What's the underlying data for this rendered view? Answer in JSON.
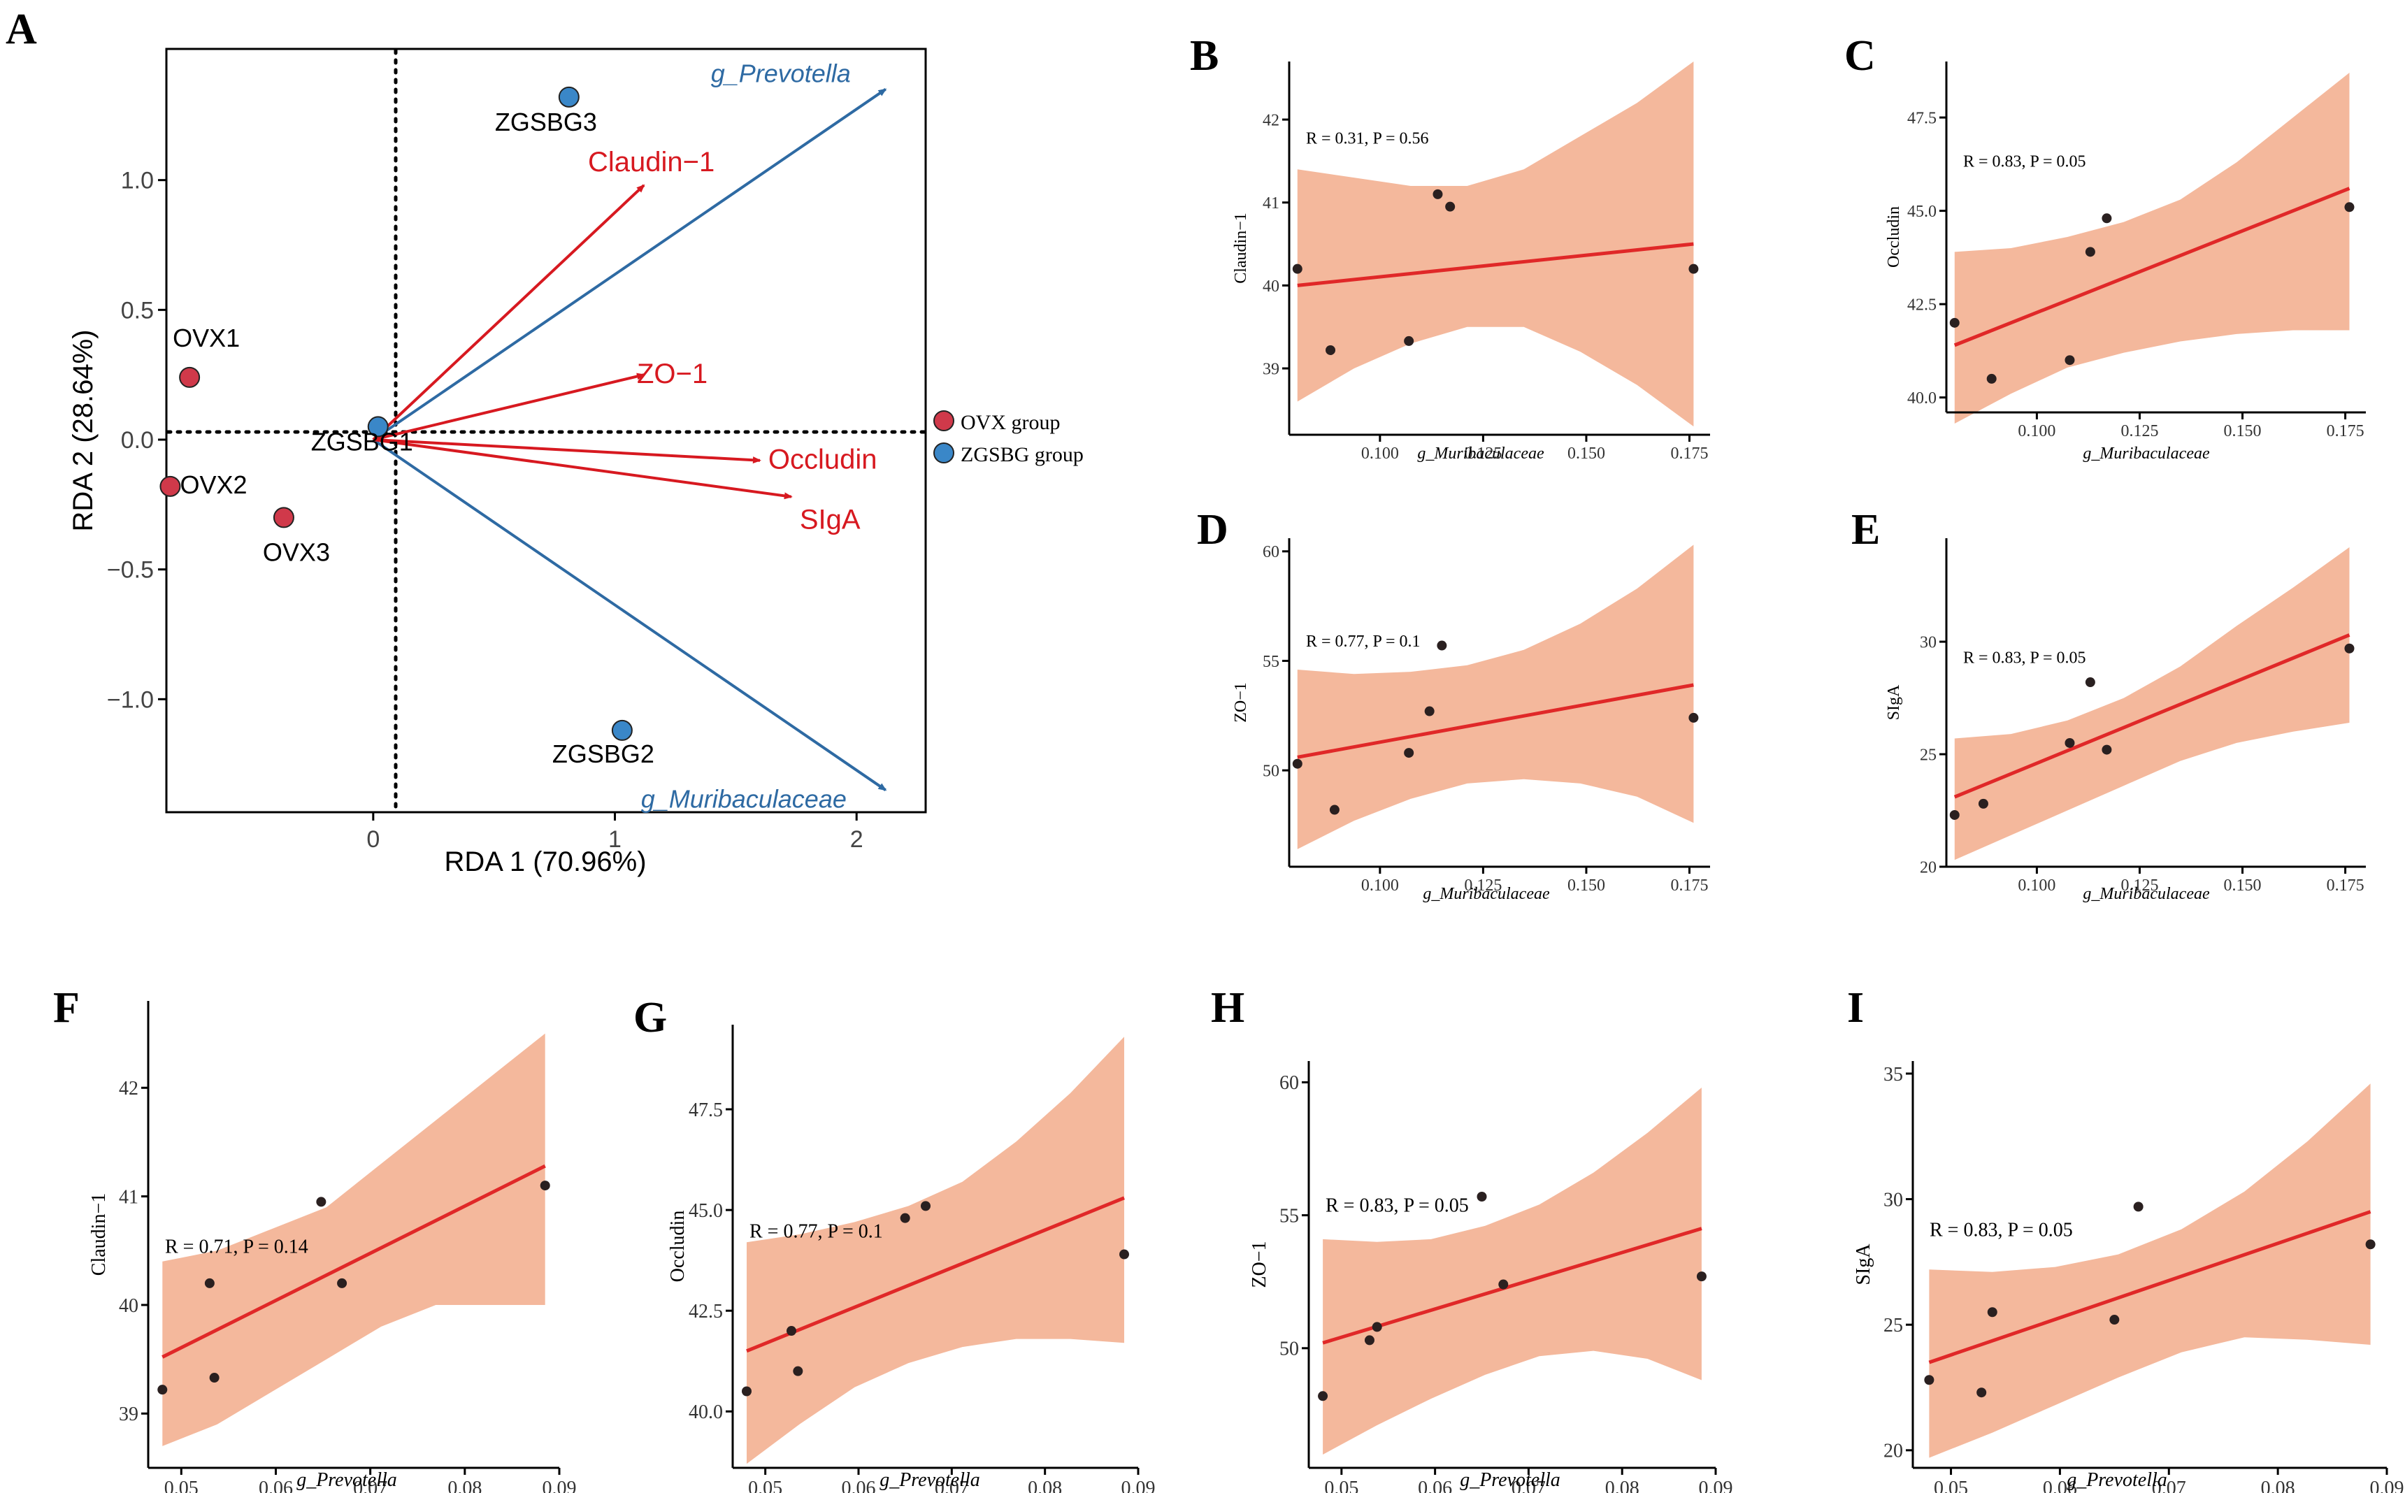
{
  "panels": {
    "A": "A",
    "B": "B",
    "C": "C",
    "D": "D",
    "E": "E",
    "F": "F",
    "G": "G",
    "H": "H",
    "I": "I"
  },
  "colors": {
    "ovx": "#d0394a",
    "zgsbg": "#3a87c8",
    "env_arrow": "#d71920",
    "species_arrow": "#2e6aa3",
    "species_text": "#2e6aa3",
    "band": "#f4b89c",
    "fit": "#e02828",
    "point": "#2a2020"
  },
  "chart_data": [
    {
      "id": "A",
      "type": "scatter",
      "subtype": "RDA biplot",
      "xlabel": "RDA 1 (70.96%)",
      "ylabel": "RDA 2 (28.64%)",
      "xlim": [
        -0.85,
        2.28
      ],
      "ylim": [
        -1.43,
        1.5
      ],
      "xticks": [
        0,
        1,
        2
      ],
      "xtick_labels": [
        "0",
        "1",
        "2"
      ],
      "yticks": [
        1.0,
        0.5,
        0.0,
        -0.5,
        -1.0
      ],
      "ytick_labels": [
        "1.0",
        "0.5",
        "0.0",
        "−0.5",
        "−1.0"
      ],
      "legend": [
        {
          "label": "OVX group",
          "color": "#d0394a"
        },
        {
          "label": "ZGSBG group",
          "color": "#3a87c8"
        }
      ],
      "samples": [
        {
          "label": "OVX1",
          "group": "OVX",
          "x": -0.76,
          "y": 0.24
        },
        {
          "label": "OVX2",
          "group": "OVX",
          "x": -0.84,
          "y": -0.18
        },
        {
          "label": "OVX3",
          "group": "OVX",
          "x": -0.37,
          "y": -0.3
        },
        {
          "label": "ZGSBG1",
          "group": "ZGSBG",
          "x": 0.02,
          "y": 0.05
        },
        {
          "label": "ZGSBG2",
          "group": "ZGSBG",
          "x": 1.03,
          "y": -1.12
        },
        {
          "label": "ZGSBG3",
          "group": "ZGSBG",
          "x": 0.81,
          "y": 1.32
        }
      ],
      "env_arrows": [
        {
          "label": "Claudin−1",
          "x": 1.12,
          "y": 0.98
        },
        {
          "label": "ZO−1",
          "x": 1.12,
          "y": 0.25
        },
        {
          "label": "Occludin",
          "x": 1.6,
          "y": -0.08
        },
        {
          "label": "SIgA",
          "x": 1.73,
          "y": -0.22
        }
      ],
      "species_arrows": [
        {
          "label": "g_Prevotella",
          "x": 2.12,
          "y": 1.35
        },
        {
          "label": "g_Muribaculaceae",
          "x": 2.12,
          "y": -1.35
        }
      ]
    },
    {
      "id": "B",
      "type": "scatter",
      "subtype": "correlation with 95% CI",
      "xlabel": "g_Muribaculaceae",
      "ylabel": "Claudin−1",
      "annotation": "R = 0.31, P = 0.56",
      "xlim": [
        0.078,
        0.18
      ],
      "ylim": [
        38.2,
        42.7
      ],
      "xticks": [
        0.1,
        0.125,
        0.15,
        0.175
      ],
      "xtick_labels": [
        "0.100",
        "0.125",
        "0.150",
        "0.175"
      ],
      "yticks": [
        39,
        40,
        41,
        42
      ],
      "ytick_labels": [
        "39",
        "40",
        "41",
        "42"
      ],
      "points": [
        [
          0.08,
          40.2
        ],
        [
          0.088,
          39.22
        ],
        [
          0.107,
          39.33
        ],
        [
          0.114,
          41.1
        ],
        [
          0.117,
          40.95
        ],
        [
          0.176,
          40.2
        ]
      ],
      "fit": {
        "x": [
          0.08,
          0.176
        ],
        "y": [
          40.0,
          40.5
        ]
      },
      "band_upper": [
        41.4,
        41.3,
        41.2,
        41.2,
        41.4,
        41.8,
        42.2,
        42.7
      ],
      "band_lower": [
        38.6,
        39.0,
        39.3,
        39.5,
        39.5,
        39.2,
        38.8,
        38.3
      ]
    },
    {
      "id": "C",
      "type": "scatter",
      "subtype": "correlation with 95% CI",
      "xlabel": "g_Muribaculaceae",
      "ylabel": "Occludin",
      "annotation": "R = 0.83, P = 0.05",
      "xlim": [
        0.078,
        0.18
      ],
      "ylim": [
        39.6,
        49.0
      ],
      "xticks": [
        0.1,
        0.125,
        0.15,
        0.175
      ],
      "xtick_labels": [
        "0.100",
        "0.125",
        "0.150",
        "0.175"
      ],
      "yticks": [
        40.0,
        42.5,
        45.0,
        47.5
      ],
      "ytick_labels": [
        "40.0",
        "42.5",
        "45.0",
        "47.5"
      ],
      "points": [
        [
          0.08,
          42.0
        ],
        [
          0.089,
          40.5
        ],
        [
          0.108,
          41.0
        ],
        [
          0.113,
          43.9
        ],
        [
          0.117,
          44.8
        ],
        [
          0.176,
          45.1
        ]
      ],
      "fit": {
        "x": [
          0.08,
          0.176
        ],
        "y": [
          41.4,
          45.6
        ]
      },
      "band_upper": [
        43.9,
        44.0,
        44.3,
        44.7,
        45.3,
        46.3,
        47.5,
        48.7
      ],
      "band_lower": [
        39.3,
        40.1,
        40.8,
        41.2,
        41.5,
        41.7,
        41.8,
        41.8
      ]
    },
    {
      "id": "D",
      "type": "scatter",
      "subtype": "correlation with 95% CI",
      "xlabel": "g_Muribaculaceae",
      "ylabel": "ZO−1",
      "annotation": "R = 0.77, P = 0.1",
      "xlim": [
        0.078,
        0.18
      ],
      "ylim": [
        45.6,
        60.6
      ],
      "xticks": [
        0.1,
        0.125,
        0.15,
        0.175
      ],
      "xtick_labels": [
        "0.100",
        "0.125",
        "0.150",
        "0.175"
      ],
      "yticks": [
        50,
        55,
        60
      ],
      "ytick_labels": [
        "50",
        "55",
        "60"
      ],
      "points": [
        [
          0.08,
          50.3
        ],
        [
          0.089,
          48.2
        ],
        [
          0.107,
          50.8
        ],
        [
          0.112,
          52.7
        ],
        [
          0.115,
          55.7
        ],
        [
          0.176,
          52.4
        ]
      ],
      "fit": {
        "x": [
          0.08,
          0.176
        ],
        "y": [
          50.6,
          53.9
        ]
      },
      "band_upper": [
        54.6,
        54.4,
        54.5,
        54.8,
        55.5,
        56.7,
        58.3,
        60.3
      ],
      "band_lower": [
        46.4,
        47.7,
        48.7,
        49.4,
        49.6,
        49.4,
        48.8,
        47.6
      ]
    },
    {
      "id": "E",
      "type": "scatter",
      "subtype": "correlation with 95% CI",
      "xlabel": "g_Muribaculaceae",
      "ylabel": "SIgA",
      "annotation": "R = 0.83, P = 0.05",
      "xlim": [
        0.078,
        0.18
      ],
      "ylim": [
        20.0,
        34.6
      ],
      "xticks": [
        0.1,
        0.125,
        0.15,
        0.175
      ],
      "xtick_labels": [
        "0.100",
        "0.125",
        "0.150",
        "0.175"
      ],
      "yticks": [
        20,
        25,
        30
      ],
      "ytick_labels": [
        "20",
        "25",
        "30"
      ],
      "points": [
        [
          0.08,
          22.3
        ],
        [
          0.087,
          22.8
        ],
        [
          0.108,
          25.5
        ],
        [
          0.113,
          28.2
        ],
        [
          0.117,
          25.2
        ],
        [
          0.176,
          29.7
        ]
      ],
      "fit": {
        "x": [
          0.08,
          0.176
        ],
        "y": [
          23.1,
          30.3
        ]
      },
      "band_upper": [
        25.7,
        25.9,
        26.5,
        27.5,
        28.9,
        30.7,
        32.4,
        34.2
      ],
      "band_lower": [
        20.3,
        21.4,
        22.5,
        23.6,
        24.7,
        25.5,
        26.0,
        26.4
      ]
    },
    {
      "id": "F",
      "type": "scatter",
      "subtype": "correlation with 95% CI",
      "xlabel": "g_Prevotella",
      "ylabel": "Claudin−1",
      "annotation": "R = 0.71, P = 0.14",
      "xlim": [
        0.0465,
        0.09
      ],
      "ylim": [
        38.5,
        42.8
      ],
      "xticks": [
        0.05,
        0.06,
        0.07,
        0.08,
        0.09
      ],
      "xtick_labels": [
        "0.05",
        "0.06",
        "0.07",
        "0.08",
        "0.09"
      ],
      "yticks": [
        39,
        40,
        41,
        42
      ],
      "ytick_labels": [
        "39",
        "40",
        "41",
        "42"
      ],
      "points": [
        [
          0.048,
          39.22
        ],
        [
          0.053,
          40.2
        ],
        [
          0.0535,
          39.33
        ],
        [
          0.0648,
          40.95
        ],
        [
          0.067,
          40.2
        ],
        [
          0.0885,
          41.1
        ]
      ],
      "fit": {
        "x": [
          0.048,
          0.0885
        ],
        "y": [
          39.52,
          41.28
        ]
      },
      "band_upper": [
        40.4,
        40.5,
        40.7,
        40.9,
        41.3,
        41.7,
        42.1,
        42.5
      ],
      "band_lower": [
        38.7,
        38.9,
        39.2,
        39.5,
        39.8,
        40.0,
        40.0,
        40.0
      ]
    },
    {
      "id": "G",
      "type": "scatter",
      "subtype": "correlation with 95% CI",
      "xlabel": "g_Prevotella",
      "ylabel": "Occludin",
      "annotation": "R = 0.77, P = 0.1",
      "xlim": [
        0.0465,
        0.09
      ],
      "ylim": [
        38.6,
        49.6
      ],
      "xticks": [
        0.05,
        0.06,
        0.07,
        0.08,
        0.09
      ],
      "xtick_labels": [
        "0.05",
        "0.06",
        "0.07",
        "0.08",
        "0.09"
      ],
      "yticks": [
        40.0,
        42.5,
        45.0,
        47.5
      ],
      "ytick_labels": [
        "40.0",
        "42.5",
        "45.0",
        "47.5"
      ],
      "points": [
        [
          0.048,
          40.5
        ],
        [
          0.0528,
          42.0
        ],
        [
          0.0535,
          41.0
        ],
        [
          0.065,
          44.8
        ],
        [
          0.0672,
          45.1
        ],
        [
          0.0885,
          43.9
        ]
      ],
      "fit": {
        "x": [
          0.048,
          0.0885
        ],
        "y": [
          41.5,
          45.3
        ]
      },
      "band_upper": [
        44.2,
        44.4,
        44.7,
        45.1,
        45.7,
        46.7,
        47.9,
        49.3
      ],
      "band_lower": [
        38.7,
        39.7,
        40.6,
        41.2,
        41.6,
        41.8,
        41.8,
        41.7
      ]
    },
    {
      "id": "H",
      "type": "scatter",
      "subtype": "correlation with 95% CI",
      "xlabel": "g_Prevotella",
      "ylabel": "ZO−1",
      "annotation": "R = 0.83, P = 0.05",
      "xlim": [
        0.0465,
        0.09
      ],
      "ylim": [
        45.5,
        60.8
      ],
      "xticks": [
        0.05,
        0.06,
        0.07,
        0.08,
        0.09
      ],
      "xtick_labels": [
        "0.05",
        "0.06",
        "0.07",
        "0.08",
        "0.09"
      ],
      "yticks": [
        50,
        55,
        60
      ],
      "ytick_labels": [
        "50",
        "55",
        "60"
      ],
      "points": [
        [
          0.048,
          48.2
        ],
        [
          0.053,
          50.3
        ],
        [
          0.0538,
          50.8
        ],
        [
          0.065,
          55.7
        ],
        [
          0.0673,
          52.4
        ],
        [
          0.0885,
          52.7
        ]
      ],
      "fit": {
        "x": [
          0.048,
          0.0885
        ],
        "y": [
          50.2,
          54.5
        ]
      },
      "band_upper": [
        54.1,
        54.0,
        54.1,
        54.6,
        55.4,
        56.6,
        58.1,
        59.8
      ],
      "band_lower": [
        46.0,
        47.1,
        48.1,
        49.0,
        49.7,
        49.9,
        49.6,
        48.8
      ]
    },
    {
      "id": "I",
      "type": "scatter",
      "subtype": "correlation with 95% CI",
      "xlabel": "g_Prevotella",
      "ylabel": "SIgA",
      "annotation": "R = 0.83, P = 0.05",
      "xlim": [
        0.0465,
        0.09
      ],
      "ylim": [
        19.3,
        35.5
      ],
      "xticks": [
        0.05,
        0.06,
        0.07,
        0.08,
        0.09
      ],
      "xtick_labels": [
        "0.05",
        "0.06",
        "0.07",
        "0.08",
        "0.09"
      ],
      "yticks": [
        20,
        25,
        30,
        35
      ],
      "ytick_labels": [
        "20",
        "25",
        "30",
        "35"
      ],
      "points": [
        [
          0.048,
          22.8
        ],
        [
          0.0528,
          22.3
        ],
        [
          0.0538,
          25.5
        ],
        [
          0.065,
          25.2
        ],
        [
          0.0672,
          29.7
        ],
        [
          0.0885,
          28.2
        ]
      ],
      "fit": {
        "x": [
          0.048,
          0.0885
        ],
        "y": [
          23.5,
          29.5
        ]
      },
      "band_upper": [
        27.2,
        27.1,
        27.3,
        27.8,
        28.8,
        30.3,
        32.3,
        34.6
      ],
      "band_lower": [
        19.7,
        20.7,
        21.8,
        22.9,
        23.9,
        24.5,
        24.4,
        24.2
      ]
    }
  ]
}
